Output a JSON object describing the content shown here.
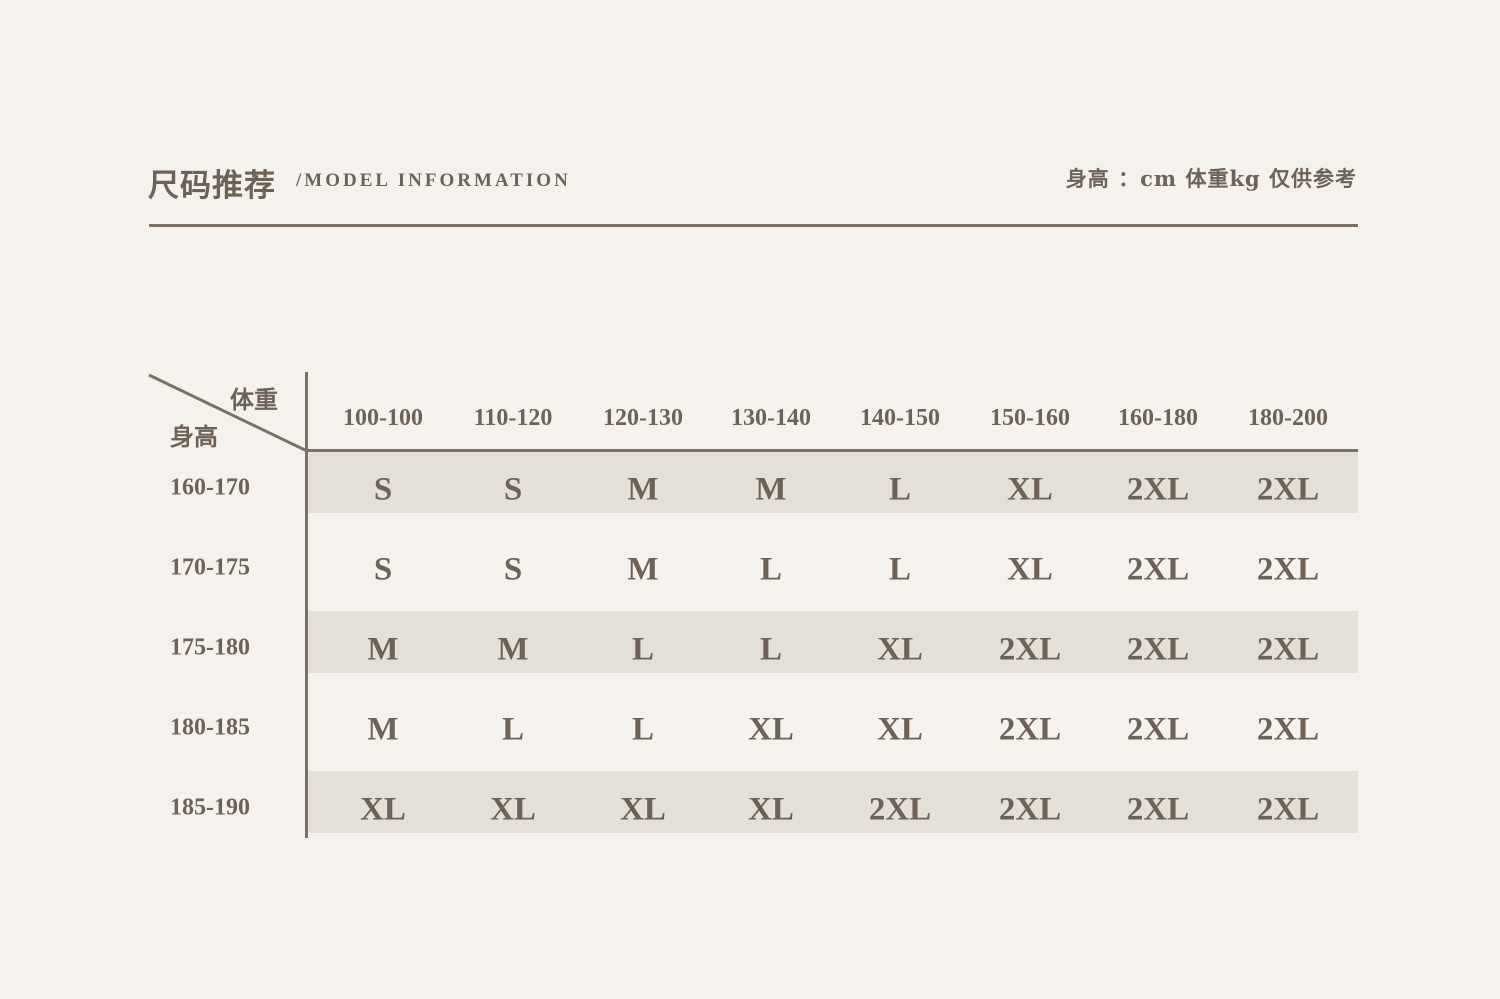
{
  "header": {
    "title_cn": "尺码推荐",
    "title_en": "/MODEL  INFORMATION",
    "note": "身高 ：cm  体重kg  仅供参考"
  },
  "table": {
    "corner_weight": "体重",
    "corner_height": "身高",
    "columns": [
      "100-100",
      "110-120",
      "120-130",
      "130-140",
      "140-150",
      "150-160",
      "160-180",
      "180-200"
    ],
    "rows": [
      {
        "label": "160-170",
        "cells": [
          "S",
          "S",
          "M",
          "M",
          "L",
          "XL",
          "2XL",
          "2XL"
        ]
      },
      {
        "label": "170-175",
        "cells": [
          "S",
          "S",
          "M",
          "L",
          "L",
          "XL",
          "2XL",
          "2XL"
        ]
      },
      {
        "label": "175-180",
        "cells": [
          "M",
          "M",
          "L",
          "L",
          "XL",
          "2XL",
          "2XL",
          "2XL"
        ]
      },
      {
        "label": "180-185",
        "cells": [
          "M",
          "L",
          "L",
          "XL",
          "XL",
          "2XL",
          "2XL",
          "2XL"
        ]
      },
      {
        "label": "185-190",
        "cells": [
          "XL",
          "XL",
          "XL",
          "XL",
          "2XL",
          "2XL",
          "2XL",
          "2XL"
        ]
      }
    ]
  },
  "colors": {
    "background": "#f5f2ee",
    "text": "#6e6256",
    "rule": "#7f6f61",
    "band": "#e4dfd7"
  }
}
